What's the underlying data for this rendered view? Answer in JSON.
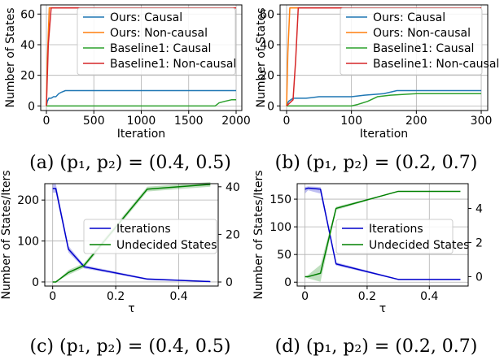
{
  "chart_data": [
    {
      "type": "line",
      "caption": "(a) (p₁, p₂) = (0.4, 0.5)",
      "xlabel": "Iteration",
      "ylabel": "Number of States",
      "xlim": [
        -60,
        2060
      ],
      "ylim": [
        -3,
        66
      ],
      "xticks": [
        0,
        500,
        1000,
        1500,
        2000
      ],
      "yticks": [
        0,
        20,
        40,
        60
      ],
      "grid": true,
      "legend_position": "upper-center",
      "series": [
        {
          "name": "Ours: Causal",
          "color": "#1f77b4",
          "x": [
            0,
            10,
            25,
            50,
            75,
            100,
            130,
            160,
            200,
            300,
            500,
            1000,
            1500,
            2000
          ],
          "y": [
            0,
            3,
            5,
            5,
            6,
            6,
            8,
            9,
            10,
            10,
            10,
            10,
            10,
            10
          ]
        },
        {
          "name": "Ours: Non-causal",
          "color": "#ff7f0e",
          "x": [
            0,
            10,
            30,
            500,
            1000,
            1500,
            2000
          ],
          "y": [
            0,
            30,
            64,
            64,
            64,
            64,
            64
          ]
        },
        {
          "name": "Baseline1: Causal",
          "color": "#2ca02c",
          "x": [
            0,
            500,
            1000,
            1500,
            1780,
            1820,
            1880,
            1950,
            2000
          ],
          "y": [
            0,
            0,
            0,
            0,
            0,
            2,
            3,
            4,
            4
          ]
        },
        {
          "name": "Baseline1: Non-causal",
          "color": "#d62728",
          "x": [
            0,
            20,
            50,
            500,
            1000,
            1500,
            2000
          ],
          "y": [
            0,
            40,
            64,
            64,
            64,
            64,
            64
          ]
        }
      ]
    },
    {
      "type": "line",
      "caption": "(b) (p₁, p₂) = (0.2, 0.7)",
      "xlabel": "Iteration",
      "ylabel": "Number of States",
      "xlim": [
        -10,
        310
      ],
      "ylim": [
        -3,
        66
      ],
      "xticks": [
        0,
        100,
        200,
        300
      ],
      "yticks": [
        0,
        20,
        40,
        60
      ],
      "grid": true,
      "legend_position": "upper-center",
      "series": [
        {
          "name": "Ours: Causal",
          "color": "#1f77b4",
          "x": [
            0,
            3,
            10,
            20,
            30,
            50,
            100,
            120,
            150,
            170,
            200,
            250,
            300
          ],
          "y": [
            0,
            3,
            5,
            5,
            5,
            6,
            6,
            7,
            8,
            10,
            10,
            10,
            10
          ]
        },
        {
          "name": "Ours: Non-causal",
          "color": "#ff7f0e",
          "x": [
            0,
            2,
            5,
            100,
            200,
            300
          ],
          "y": [
            0,
            35,
            64,
            64,
            64,
            64
          ]
        },
        {
          "name": "Baseline1: Causal",
          "color": "#2ca02c",
          "x": [
            0,
            50,
            100,
            110,
            125,
            140,
            160,
            200,
            250,
            300
          ],
          "y": [
            0,
            0,
            0,
            1,
            3,
            6,
            7,
            8,
            8,
            8
          ]
        },
        {
          "name": "Baseline1: Non-causal",
          "color": "#d62728",
          "x": [
            0,
            10,
            14,
            18,
            100,
            200,
            300
          ],
          "y": [
            0,
            4,
            30,
            64,
            64,
            64,
            64
          ]
        }
      ]
    },
    {
      "type": "line",
      "caption": "(c) (p₁, p₂) = (0.4, 0.5)",
      "xlabel": "τ",
      "ylabel": "Number of States/Iters",
      "xlim": [
        -0.025,
        0.525
      ],
      "ylim": [
        -10,
        240
      ],
      "ylim_right": [
        -1.7,
        41.3
      ],
      "xticks": [
        0.0,
        0.2,
        0.4
      ],
      "yticks": [
        0,
        100,
        200
      ],
      "yticks_right": [
        0,
        20,
        40
      ],
      "grid": true,
      "legend_position": "center-right",
      "series": [
        {
          "name": "Iterations",
          "color": "#0000cc",
          "axis": "left",
          "x": [
            0.0,
            0.01,
            0.05,
            0.1,
            0.3,
            0.5
          ],
          "y": [
            228,
            228,
            80,
            37,
            7,
            1
          ],
          "band": [
            [
              218,
              240
            ],
            [
              218,
              240
            ],
            [
              72,
              88
            ],
            [
              33,
              41
            ],
            [
              5,
              9
            ],
            [
              0,
              2
            ]
          ]
        },
        {
          "name": "Undecided States",
          "color": "#008000",
          "axis": "right",
          "x": [
            0.0,
            0.01,
            0.05,
            0.1,
            0.3,
            0.5
          ],
          "y": [
            0,
            0,
            4,
            7,
            39,
            41
          ],
          "band": [
            [
              0,
              0
            ],
            [
              0,
              0
            ],
            [
              3,
              5
            ],
            [
              6,
              8
            ],
            [
              38,
              40
            ],
            [
              40,
              42
            ]
          ]
        }
      ]
    },
    {
      "type": "line",
      "caption": "(d) (p₁, p₂) = (0.2, 0.7)",
      "xlabel": "τ",
      "ylabel": "Number of States/Iters",
      "xlim": [
        -0.025,
        0.525
      ],
      "ylim": [
        -7,
        178
      ],
      "ylim_right": [
        -0.55,
        5.45
      ],
      "xticks": [
        0.0,
        0.2,
        0.4
      ],
      "yticks": [
        0,
        50,
        100,
        150
      ],
      "yticks_right": [
        0,
        2,
        4
      ],
      "grid": true,
      "legend_position": "center-right",
      "series": [
        {
          "name": "Iterations",
          "color": "#0000cc",
          "axis": "left",
          "x": [
            0.0,
            0.01,
            0.05,
            0.1,
            0.3,
            0.5
          ],
          "y": [
            168,
            170,
            168,
            33,
            5,
            5
          ],
          "band": [
            [
              160,
              172
            ],
            [
              166,
              173
            ],
            [
              160,
              172
            ],
            [
              30,
              36
            ],
            [
              4,
              6
            ],
            [
              4,
              6
            ]
          ]
        },
        {
          "name": "Undecided States",
          "color": "#008000",
          "axis": "right",
          "x": [
            0.0,
            0.01,
            0.05,
            0.1,
            0.3,
            0.5
          ],
          "y": [
            0,
            0,
            0.2,
            4,
            5,
            5
          ],
          "band": [
            [
              0,
              0
            ],
            [
              -0.1,
              0.1
            ],
            [
              -0.3,
              0.7
            ],
            [
              3.9,
              4.1
            ],
            [
              5,
              5
            ],
            [
              5,
              5
            ]
          ]
        }
      ]
    }
  ]
}
